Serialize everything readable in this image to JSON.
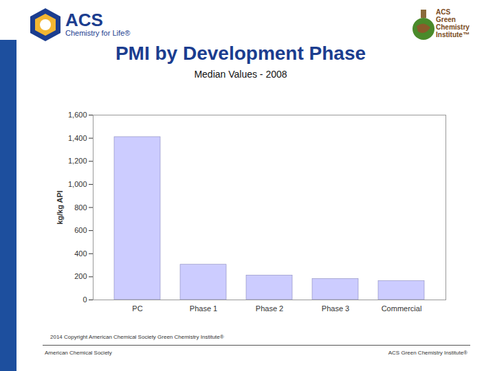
{
  "chart_data": {
    "type": "bar",
    "title": "PMI by Development Phase",
    "subtitle": "Median Values - 2008",
    "y_label": "kg/kg API",
    "categories": [
      "PC",
      "Phase 1",
      "Phase 2",
      "Phase 3",
      "Commercial"
    ],
    "values": [
      1410,
      305,
      212,
      182,
      163
    ],
    "color": "#ccccff",
    "ylim": [
      0,
      1600
    ],
    "yticks": [
      0,
      200,
      400,
      600,
      800,
      {
        "value": 1000,
        "label": "1,000"
      },
      {
        "value": 1200,
        "label": "1,200"
      },
      {
        "value": 1400,
        "label": "1,400"
      },
      {
        "value": 1600,
        "label": "1,600"
      }
    ],
    "grid": false
  },
  "slide": {
    "copyright": "2014 Copyright American Chemical Society Green Chemistry Institute®",
    "footer_left": "American Chemical Society",
    "footer_right": "ACS Green Chemistry Institute®",
    "logo_left": {
      "name": "ACS",
      "tagline": "Chemistry for Life®"
    },
    "logo_right": [
      "ACS",
      "Green",
      "Chemistry",
      "Institute™"
    ]
  }
}
